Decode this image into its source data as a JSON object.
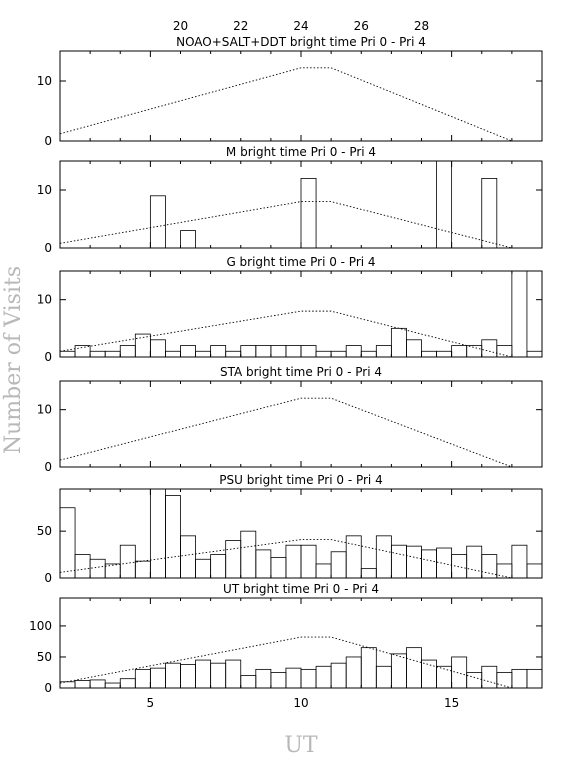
{
  "figure": {
    "ylabel": "Number of Visits",
    "xlabel": "UT",
    "top_axis_ticks": [
      "20",
      "22",
      "24",
      "26",
      "28"
    ],
    "bottom_axis_ticks": [
      "5",
      "10",
      "15"
    ]
  },
  "chart_data": [
    {
      "type": "line",
      "title": "NOAO+SALT+DDT    bright time Pri 0 - Pri 4",
      "xlim": [
        2,
        18
      ],
      "ylim": [
        0,
        15
      ],
      "yticks": [
        0,
        10
      ],
      "ytick_labels": [
        "0",
        "10"
      ],
      "series": [
        {
          "style": "dotted",
          "x": [
            2,
            10,
            11,
            17
          ],
          "y": [
            1.2,
            12.2,
            12.2,
            0
          ]
        }
      ]
    },
    {
      "type": "bar",
      "title": "M    bright time Pri 0 - Pri 4",
      "xlim": [
        2,
        18
      ],
      "ylim": [
        0,
        15
      ],
      "yticks": [
        0,
        10
      ],
      "ytick_labels": [
        "0",
        "10"
      ],
      "bins": {
        "start": 2,
        "width": 0.5
      },
      "values": [
        0,
        0,
        0,
        0,
        0,
        0,
        9,
        0,
        3,
        0,
        0,
        0,
        0,
        0,
        0,
        0,
        12,
        0,
        0,
        0,
        0,
        0,
        0,
        0,
        0,
        15,
        0,
        0,
        12,
        0,
        0,
        0,
        0,
        0,
        0,
        0
      ],
      "series": [
        {
          "style": "dotted",
          "x": [
            2,
            10,
            11,
            17
          ],
          "y": [
            0.8,
            8.0,
            8.0,
            0
          ]
        }
      ]
    },
    {
      "type": "bar",
      "title": "G    bright time Pri 0 - Pri 4",
      "xlim": [
        2,
        18
      ],
      "ylim": [
        0,
        15
      ],
      "yticks": [
        0,
        10
      ],
      "ytick_labels": [
        "0",
        "10"
      ],
      "bins": {
        "start": 2,
        "width": 0.5
      },
      "values": [
        1,
        2,
        1,
        1,
        2,
        4,
        3,
        1,
        2,
        1,
        2,
        1,
        2,
        2,
        2,
        2,
        2,
        1,
        1,
        2,
        1,
        2,
        5,
        3,
        1,
        1,
        2,
        2,
        3,
        2,
        15,
        1,
        1,
        1,
        0,
        0
      ],
      "series": [
        {
          "style": "dotted",
          "x": [
            2,
            10,
            11,
            17
          ],
          "y": [
            1.0,
            8.0,
            8.0,
            0
          ]
        }
      ]
    },
    {
      "type": "line",
      "title": "STA    bright time Pri 0 - Pri 4",
      "xlim": [
        2,
        18
      ],
      "ylim": [
        0,
        15
      ],
      "yticks": [
        0,
        10
      ],
      "ytick_labels": [
        "0",
        "10"
      ],
      "series": [
        {
          "style": "dotted",
          "x": [
            2,
            10,
            11,
            17
          ],
          "y": [
            1.2,
            12.0,
            12.0,
            0
          ]
        }
      ]
    },
    {
      "type": "bar",
      "title": "PSU    bright time Pri 0 - Pri 4",
      "xlim": [
        2,
        18
      ],
      "ylim": [
        0,
        95
      ],
      "yticks": [
        0,
        50
      ],
      "ytick_labels": [
        "0",
        "50"
      ],
      "bins": {
        "start": 2,
        "width": 0.5
      },
      "values": [
        75,
        25,
        20,
        15,
        35,
        18,
        95,
        88,
        45,
        20,
        25,
        40,
        50,
        30,
        22,
        35,
        35,
        15,
        28,
        45,
        10,
        45,
        35,
        34,
        30,
        32,
        25,
        34,
        25,
        15,
        35,
        15,
        25,
        15,
        25,
        35
      ],
      "series": [
        {
          "style": "dotted",
          "x": [
            2,
            10,
            11,
            17
          ],
          "y": [
            6,
            41,
            41,
            0
          ]
        }
      ]
    },
    {
      "type": "bar",
      "title": "UT    bright time Pri 0 - Pri 4",
      "xlim": [
        2,
        18
      ],
      "ylim": [
        0,
        145
      ],
      "yticks": [
        0,
        50,
        100
      ],
      "ytick_labels": [
        "0",
        "50",
        "100"
      ],
      "bins": {
        "start": 2,
        "width": 0.5
      },
      "values": [
        10,
        12,
        13,
        8,
        15,
        30,
        32,
        40,
        38,
        45,
        40,
        45,
        20,
        30,
        25,
        32,
        30,
        35,
        40,
        50,
        65,
        35,
        55,
        65,
        45,
        35,
        50,
        25,
        35,
        25,
        30,
        30,
        25,
        35,
        22,
        25
      ],
      "series": [
        {
          "style": "dotted",
          "x": [
            2,
            10,
            11,
            17
          ],
          "y": [
            8,
            82,
            82,
            0
          ]
        }
      ]
    }
  ]
}
